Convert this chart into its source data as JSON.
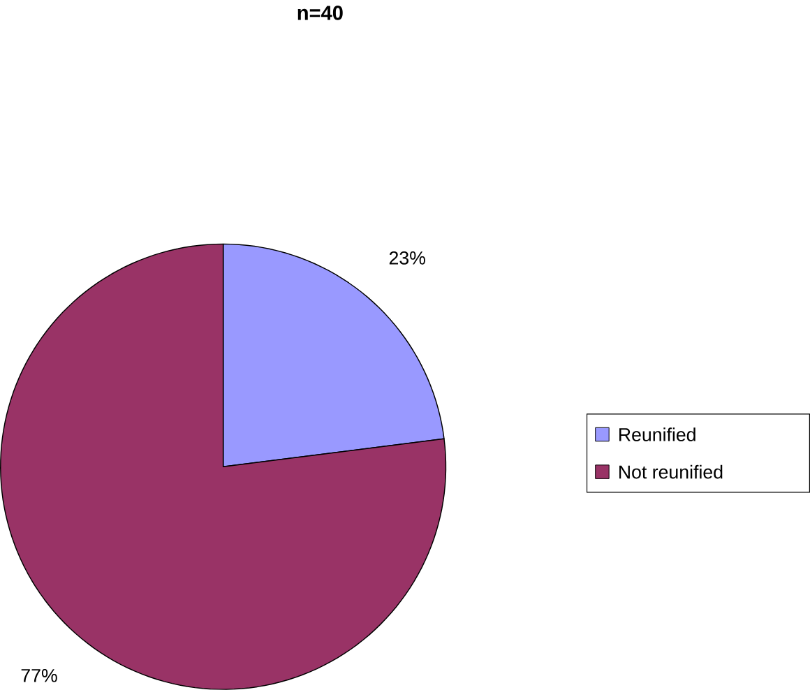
{
  "chart_data": {
    "type": "pie",
    "title": "n=40",
    "categories": [
      "Reunified",
      "Not reunified"
    ],
    "values": [
      23,
      77
    ],
    "colors": [
      "#9999ff",
      "#993366"
    ],
    "value_labels": [
      "23%",
      "77%"
    ],
    "legend": "right"
  }
}
